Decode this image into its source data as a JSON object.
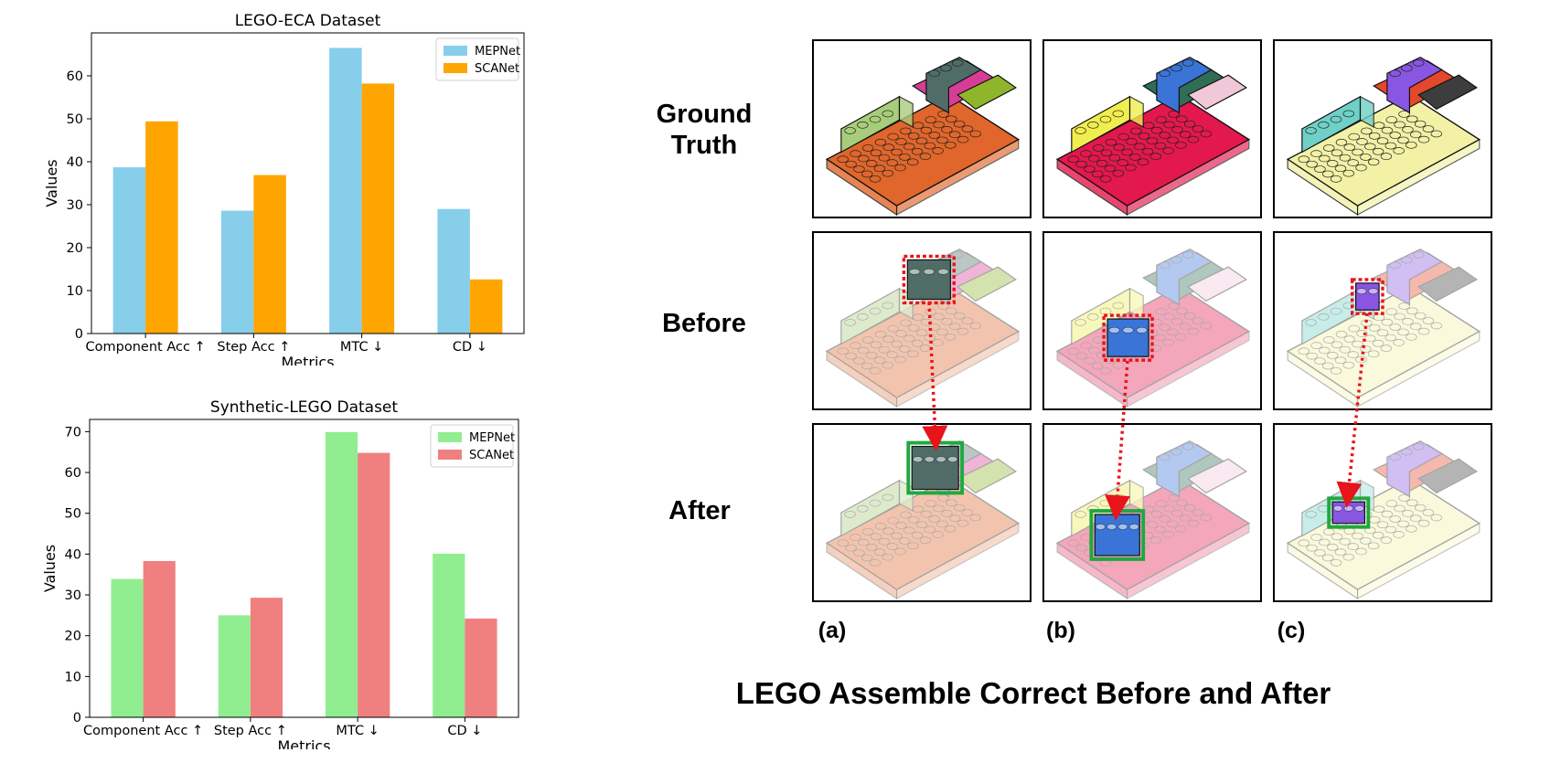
{
  "chart_data": [
    {
      "type": "bar",
      "title": "LEGO-ECA Dataset",
      "xlabel": "Metrics",
      "ylabel": "Values",
      "categories": [
        "Component Acc ↑",
        "Step Acc ↑",
        "MTC ↓",
        "CD ↓"
      ],
      "series": [
        {
          "name": "MEPNet",
          "color": "#87ceeb",
          "values": [
            38.7,
            28.6,
            66.5,
            29.0
          ]
        },
        {
          "name": "SCANet",
          "color": "#ffa500",
          "values": [
            49.4,
            36.9,
            58.2,
            12.6
          ]
        }
      ],
      "ylim": [
        0,
        70
      ],
      "yticks": [
        0,
        10,
        20,
        30,
        40,
        50,
        60
      ],
      "legend": "top-right",
      "grid": false
    },
    {
      "type": "bar",
      "title": "Synthetic-LEGO Dataset",
      "xlabel": "Metrics",
      "ylabel": "Values",
      "categories": [
        "Component Acc ↑",
        "Step Acc ↑",
        "MTC ↓",
        "CD ↓"
      ],
      "series": [
        {
          "name": "MEPNet",
          "color": "#90ee90",
          "values": [
            33.9,
            25.0,
            69.9,
            40.1
          ]
        },
        {
          "name": "SCANet",
          "color": "#f08080",
          "values": [
            38.3,
            29.3,
            64.8,
            24.2
          ]
        }
      ],
      "ylim": [
        0,
        73
      ],
      "yticks": [
        0,
        10,
        20,
        30,
        40,
        50,
        60,
        70
      ],
      "legend": "top-right",
      "grid": false
    }
  ],
  "figure": {
    "title": "LEGO Assemble Correct Before and After",
    "row_labels": [
      {
        "line1": "Ground",
        "line2": "Truth"
      },
      {
        "line1": "Before",
        "line2": ""
      },
      {
        "line1": "After",
        "line2": ""
      }
    ],
    "column_labels": [
      "(a)",
      "(b)",
      "(c)"
    ],
    "colors": {
      "error_box": "#e8141c",
      "fixed_box": "#1fa83f",
      "arrow": "#e8141c"
    }
  }
}
